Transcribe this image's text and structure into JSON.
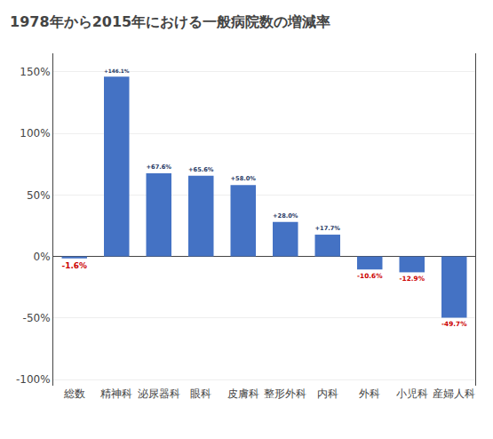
{
  "chart_data": {
    "type": "bar",
    "title": "1978年から2015年における一般病院数の増減率",
    "categories": [
      "総数",
      "精神科",
      "泌尿器科",
      "眼科",
      "皮膚科",
      "整形外科",
      "内科",
      "外科",
      "小児科",
      "産婦人科"
    ],
    "values": [
      -1.6,
      146.1,
      67.6,
      65.6,
      58.0,
      28.0,
      17.7,
      -10.6,
      -12.9,
      -49.7
    ],
    "value_labels": [
      "-1.6%",
      "+146.1%",
      "+67.6%",
      "+65.6%",
      "+58.0%",
      "+28.0%",
      "+17.7%",
      "-10.6%",
      "-12.9%",
      "-49.7%"
    ],
    "data_labels": true,
    "color": "#4472C4",
    "ylim": [
      -105,
      165
    ],
    "yticks": [
      {
        "value": -100,
        "label": "-100%"
      },
      {
        "value": -50,
        "label": "-50%"
      },
      {
        "value": 0,
        "label": "0%"
      },
      {
        "value": 50,
        "label": "50%"
      },
      {
        "value": 100,
        "label": "100%"
      },
      {
        "value": 150,
        "label": "150%"
      }
    ],
    "grid": true
  }
}
